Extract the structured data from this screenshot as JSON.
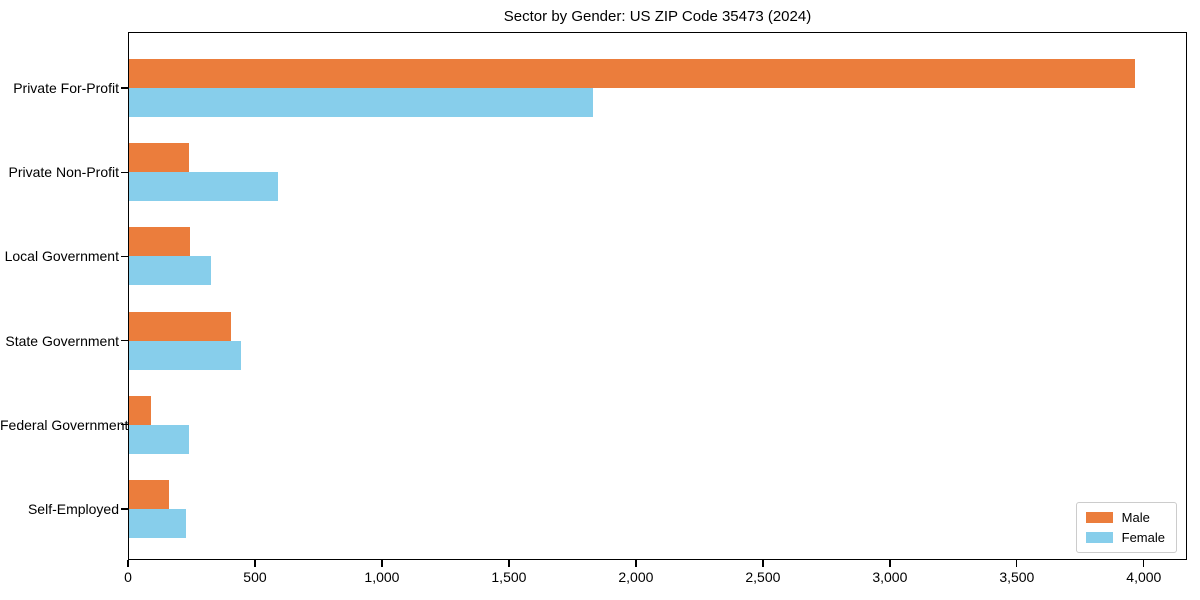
{
  "title": "Sector by Gender: US ZIP Code 35473 (2024)",
  "colors": {
    "male": "#eb7d3c",
    "female": "#87ceeb",
    "axis": "#000000",
    "legend_border": "#cccccc",
    "background": "#ffffff"
  },
  "legend": {
    "position": "lower right",
    "entries": [
      "Male",
      "Female"
    ]
  },
  "chart_data": {
    "type": "bar",
    "orientation": "horizontal",
    "title": "Sector by Gender: US ZIP Code 35473 (2024)",
    "categories": [
      "Private For-Profit",
      "Private Non-Profit",
      "Local Government",
      "State Government",
      "Federal Government",
      "Self-Employed"
    ],
    "series": [
      {
        "name": "Male",
        "color": "#eb7d3c",
        "values": [
          3965,
          240,
          245,
          405,
          90,
          160
        ]
      },
      {
        "name": "Female",
        "color": "#87ceeb",
        "values": [
          1830,
          590,
          325,
          445,
          240,
          230
        ]
      }
    ],
    "xlabel": "",
    "ylabel": "",
    "xlim": [
      0,
      4170
    ],
    "xticks": [
      0,
      500,
      1000,
      1500,
      2000,
      2500,
      3000,
      3500,
      4000
    ],
    "xtick_labels": [
      "0",
      "500",
      "1,000",
      "1,500",
      "2,000",
      "2,500",
      "3,000",
      "3,500",
      "4,000"
    ],
    "grid": false,
    "legend_position": "lower right"
  }
}
